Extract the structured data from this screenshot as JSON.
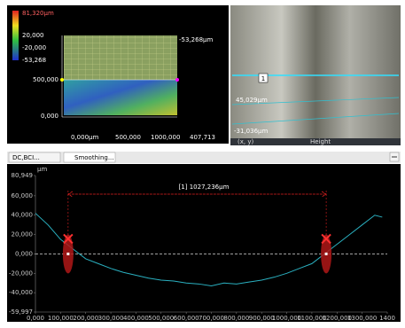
{
  "left_panel": {
    "scale_labels": [
      "81,320µm",
      "20,000",
      "-20,000",
      "-53,268"
    ],
    "overlay_label": "-53,268µm",
    "y_labels": [
      "500,000",
      "0,000"
    ],
    "x_labels": [
      "0,000µm",
      "500,000",
      "1000,000",
      "407,713"
    ]
  },
  "right_panel": {
    "marker": "1",
    "labels": [
      "45,029µm",
      "-31,036µm"
    ],
    "footer": [
      "(x, y)",
      "Height"
    ]
  },
  "tabs": [
    "DC,BCI...",
    "Smoothing..."
  ],
  "profile": {
    "unit": "µm",
    "annotation": "[1] 1027,236µm",
    "xlim": [
      0,
      1400
    ],
    "xticks": [
      {
        "value": 0,
        "label": "0,000"
      },
      {
        "value": 100,
        "label": "100,000"
      },
      {
        "value": 200,
        "label": "200,000"
      },
      {
        "value": 300,
        "label": "300,000"
      },
      {
        "value": 400,
        "label": "400,000"
      },
      {
        "value": 500,
        "label": "500,000"
      },
      {
        "value": 600,
        "label": "600,000"
      },
      {
        "value": 700,
        "label": "700,000"
      },
      {
        "value": 800,
        "label": "800,000"
      },
      {
        "value": 900,
        "label": "900,000"
      },
      {
        "value": 1000,
        "label": "1000,000"
      },
      {
        "value": 1100,
        "label": "1100,000"
      },
      {
        "value": 1200,
        "label": "1200,000"
      },
      {
        "value": 1300,
        "label": "1300,000"
      },
      1400
    ],
    "ylim": [
      -59.997,
      80.949
    ],
    "yticks": [
      {
        "value": 80.949,
        "label": "80,949"
      },
      {
        "value": 60,
        "label": "60,000"
      },
      {
        "value": 40,
        "label": "40,000"
      },
      {
        "value": 20,
        "label": "20,000"
      },
      {
        "value": 0,
        "label": "0,000"
      },
      {
        "value": -20,
        "label": "-20,000"
      },
      {
        "value": -40,
        "label": "-40,000"
      },
      {
        "value": -59.997,
        "label": "-59,997"
      }
    ],
    "color": "#2ab0c0",
    "x": [
      0,
      50,
      100,
      150,
      200,
      250,
      300,
      350,
      400,
      450,
      500,
      550,
      600,
      650,
      700,
      750,
      800,
      850,
      900,
      950,
      1000,
      1050,
      1100,
      1150,
      1200,
      1250,
      1300,
      1350,
      1380
    ],
    "values": [
      42,
      30,
      15,
      5,
      -5,
      -10,
      -15,
      -19,
      -22,
      -25,
      -27,
      -28,
      -30,
      -31,
      -33,
      -30,
      -31,
      -29,
      -27,
      -24,
      -20,
      -15,
      -10,
      0,
      10,
      20,
      30,
      40,
      38
    ],
    "cursors": [
      130,
      1157
    ]
  }
}
